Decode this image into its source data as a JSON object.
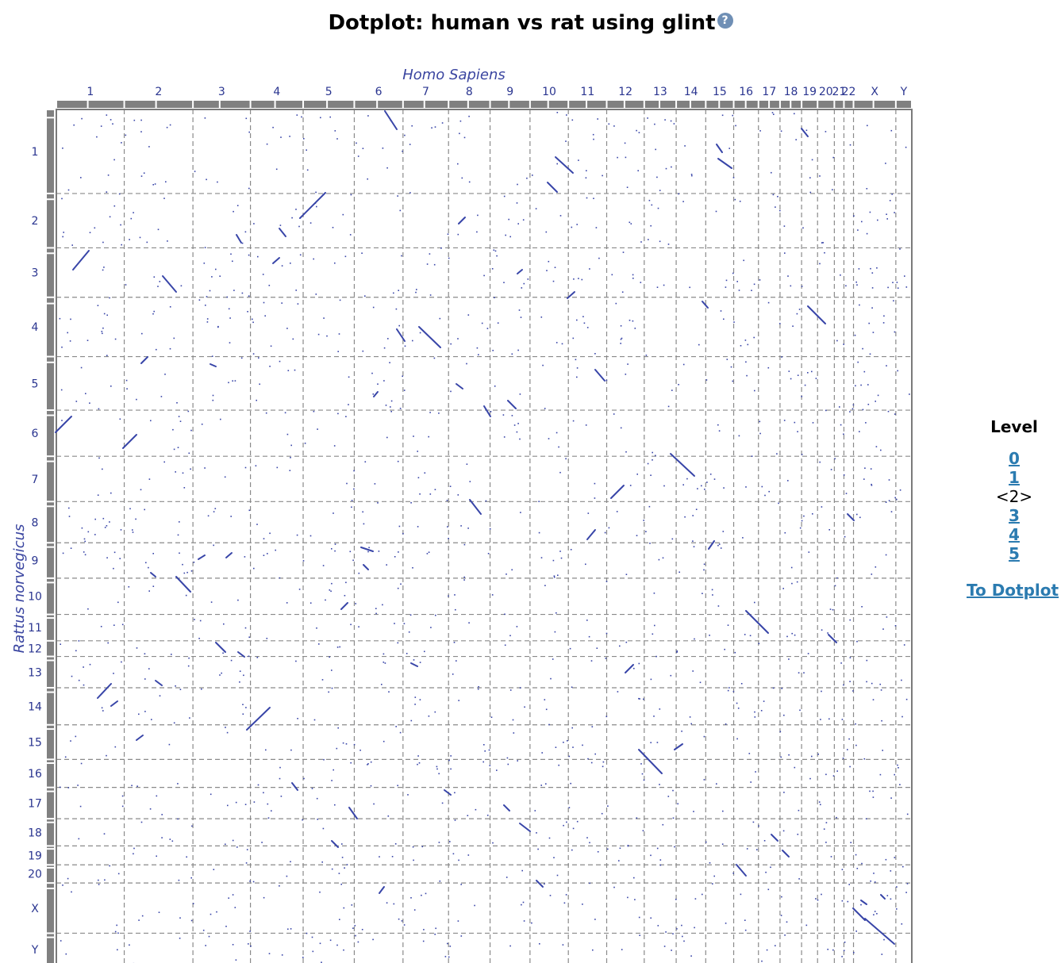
{
  "page": {
    "title": "Dotplot: human vs rat using glint",
    "help_icon": "question-icon"
  },
  "chart_data": {
    "type": "scatter",
    "x_species": "Homo Sapiens",
    "y_species": "Rattus norvegicus",
    "grid": true,
    "x_chromosomes": [
      "1",
      "2",
      "3",
      "4",
      "5",
      "6",
      "7",
      "8",
      "9",
      "10",
      "11",
      "12",
      "13",
      "14",
      "15",
      "16",
      "17",
      "18",
      "19",
      "20",
      "21",
      "22",
      "X",
      "Y"
    ],
    "y_chromosomes": [
      "1",
      "2",
      "3",
      "4",
      "5",
      "6",
      "7",
      "8",
      "9",
      "10",
      "11",
      "12",
      "13",
      "14",
      "15",
      "16",
      "17",
      "18",
      "19",
      "20",
      "X",
      "Y"
    ],
    "point_color": "#3845a8",
    "x_relative_lengths": [
      85,
      86,
      72,
      66,
      64,
      61,
      57,
      52,
      50,
      48,
      48,
      47,
      40,
      37,
      35,
      31,
      27,
      27,
      20,
      21,
      12,
      12,
      53,
      20
    ],
    "y_relative_lengths": [
      102,
      66,
      60,
      72,
      65,
      56,
      55,
      50,
      43,
      44,
      32,
      19,
      38,
      45,
      42,
      34,
      38,
      33,
      23,
      22,
      61,
      40
    ]
  },
  "level_panel": {
    "title": "Level",
    "levels": [
      "0",
      "1",
      "<2>",
      "3",
      "4",
      "5"
    ],
    "current_index": 2,
    "to_dotplot": "To Dotplot"
  }
}
